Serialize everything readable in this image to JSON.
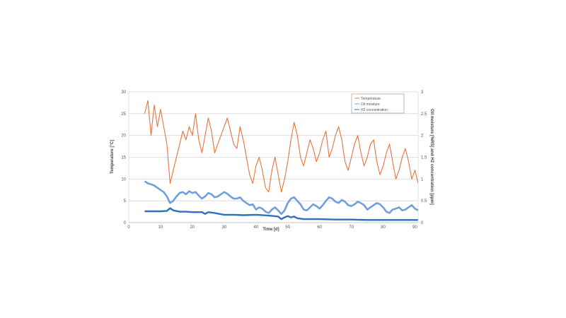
{
  "chart_data": {
    "type": "line",
    "xlabel": "Time [d]",
    "ylabel_left": "Temperature [°C]",
    "ylabel_right": "Oil moisture [%RS] and H2 concentration [ppm]",
    "xlim": [
      0,
      91
    ],
    "ylim_left": [
      0,
      30
    ],
    "ylim_right": [
      0,
      3
    ],
    "x_ticks": [
      "0",
      "10",
      "20",
      "30",
      "40",
      "50",
      "60",
      "70",
      "80",
      "90"
    ],
    "y_ticks_left": [
      "0",
      "5",
      "10",
      "15",
      "20",
      "25",
      "30"
    ],
    "y_ticks_right": [
      "0",
      "0.5",
      "1",
      "1.5",
      "2",
      "2.5",
      "3"
    ],
    "grid": "horizontal",
    "legend_position": "top-right",
    "series": [
      {
        "name": "Temperature",
        "axis": "left",
        "color": "#e8733a",
        "x": [
          5,
          6,
          7,
          8,
          9,
          10,
          11,
          12,
          13,
          14,
          15,
          16,
          17,
          18,
          19,
          20,
          21,
          22,
          23,
          24,
          25,
          26,
          27,
          28,
          29,
          30,
          31,
          32,
          33,
          34,
          35,
          36,
          37,
          38,
          39,
          40,
          41,
          42,
          43,
          44,
          45,
          46,
          47,
          48,
          49,
          50,
          51,
          52,
          53,
          54,
          55,
          56,
          57,
          58,
          59,
          60,
          61,
          62,
          63,
          64,
          65,
          66,
          67,
          68,
          69,
          70,
          71,
          72,
          73,
          74,
          75,
          76,
          77,
          78,
          79,
          80,
          81,
          82,
          83,
          84,
          85,
          86,
          87,
          88,
          89,
          90,
          91
        ],
        "values": [
          25,
          28,
          20,
          27,
          22,
          26,
          22,
          18,
          9,
          12,
          15,
          18,
          21,
          19,
          22,
          20,
          25,
          19,
          16,
          20,
          24,
          21,
          16,
          18,
          20,
          22,
          24,
          21,
          18,
          17,
          22,
          19,
          15,
          11,
          9,
          13,
          15,
          12,
          8,
          7,
          12,
          15,
          11,
          7,
          10,
          14,
          19,
          23,
          20,
          15,
          13,
          16,
          19,
          17,
          14,
          16,
          19,
          21,
          15,
          17,
          20,
          22,
          19,
          14,
          12,
          15,
          18,
          20,
          16,
          13,
          15,
          18,
          19,
          14,
          11,
          13,
          16,
          18,
          14,
          10,
          12,
          15,
          17,
          14,
          10,
          12,
          9
        ]
      },
      {
        "name": "Oil moisture",
        "axis": "right",
        "color": "#6fa0dc",
        "x": [
          5,
          6,
          7,
          8,
          9,
          10,
          11,
          12,
          13,
          14,
          15,
          16,
          17,
          18,
          19,
          20,
          21,
          22,
          23,
          24,
          25,
          26,
          27,
          28,
          29,
          30,
          31,
          32,
          33,
          34,
          35,
          36,
          37,
          38,
          39,
          40,
          41,
          42,
          43,
          44,
          45,
          46,
          47,
          48,
          49,
          50,
          51,
          52,
          53,
          54,
          55,
          56,
          57,
          58,
          59,
          60,
          61,
          62,
          63,
          64,
          65,
          66,
          67,
          68,
          69,
          70,
          71,
          72,
          73,
          74,
          75,
          76,
          77,
          78,
          79,
          80,
          81,
          82,
          83,
          84,
          85,
          86,
          87,
          88,
          89,
          90,
          91
        ],
        "values": [
          0.95,
          0.9,
          0.88,
          0.85,
          0.8,
          0.75,
          0.7,
          0.6,
          0.45,
          0.5,
          0.6,
          0.68,
          0.7,
          0.65,
          0.72,
          0.68,
          0.7,
          0.62,
          0.55,
          0.6,
          0.68,
          0.65,
          0.58,
          0.6,
          0.65,
          0.7,
          0.66,
          0.6,
          0.55,
          0.55,
          0.58,
          0.5,
          0.45,
          0.4,
          0.42,
          0.3,
          0.35,
          0.32,
          0.25,
          0.22,
          0.3,
          0.35,
          0.28,
          0.2,
          0.28,
          0.45,
          0.55,
          0.58,
          0.5,
          0.42,
          0.3,
          0.28,
          0.35,
          0.42,
          0.38,
          0.32,
          0.4,
          0.5,
          0.58,
          0.55,
          0.48,
          0.45,
          0.52,
          0.48,
          0.4,
          0.38,
          0.42,
          0.48,
          0.45,
          0.4,
          0.3,
          0.35,
          0.4,
          0.45,
          0.42,
          0.35,
          0.25,
          0.22,
          0.3,
          0.32,
          0.35,
          0.28,
          0.3,
          0.35,
          0.4,
          0.32,
          0.28
        ]
      },
      {
        "name": "H2 concentration",
        "axis": "right",
        "color": "#2f6fbf",
        "x": [
          5,
          8,
          10,
          12,
          13,
          14,
          16,
          18,
          20,
          23,
          24,
          25,
          27,
          30,
          33,
          36,
          40,
          44,
          47,
          48,
          49,
          50,
          51,
          52,
          53,
          55,
          60,
          65,
          70,
          75,
          80,
          85,
          90,
          91
        ],
        "values": [
          0.26,
          0.26,
          0.26,
          0.27,
          0.33,
          0.28,
          0.25,
          0.25,
          0.24,
          0.24,
          0.2,
          0.24,
          0.22,
          0.18,
          0.18,
          0.17,
          0.18,
          0.16,
          0.14,
          0.08,
          0.12,
          0.15,
          0.12,
          0.14,
          0.1,
          0.08,
          0.08,
          0.07,
          0.07,
          0.06,
          0.06,
          0.06,
          0.06,
          0.06
        ]
      }
    ]
  }
}
